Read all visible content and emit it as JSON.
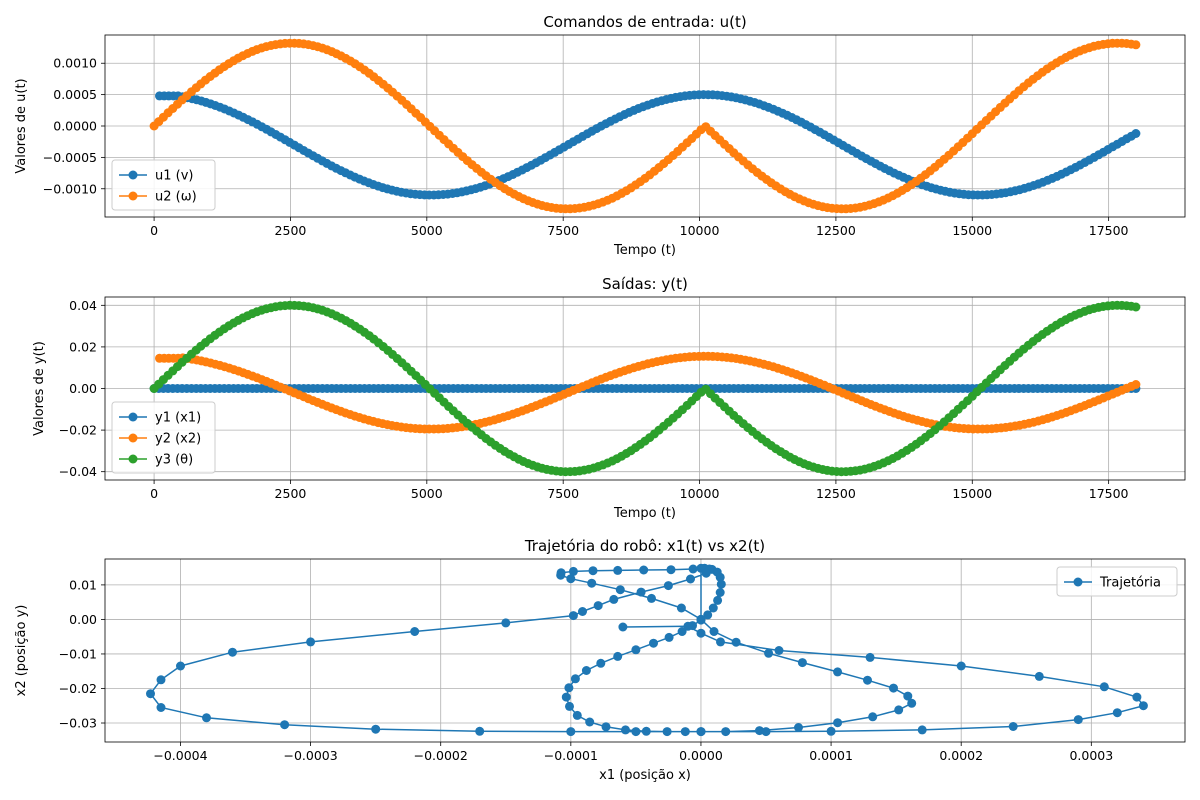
{
  "chart_data": [
    {
      "type": "line",
      "title": "Comandos de entrada: u(t)",
      "xlabel": "Tempo (t)",
      "ylabel": "Valores de u(t)",
      "xlim": [
        -900,
        18900
      ],
      "ylim": [
        -0.00145,
        0.00145
      ],
      "xticks": [
        0,
        2500,
        5000,
        7500,
        10000,
        12500,
        15000,
        17500
      ],
      "xtick_labels": [
        "0",
        "2500",
        "5000",
        "7500",
        "10000",
        "12500",
        "15000",
        "17500"
      ],
      "yticks": [
        -0.001,
        -0.0005,
        0,
        0.0005,
        0.001
      ],
      "ytick_labels": [
        "−0.0010",
        "−0.0005",
        "0.0000",
        "0.0005",
        "0.0010"
      ],
      "grid": true,
      "legend_position": "lower-left",
      "series": [
        {
          "name": "u1 (v)",
          "color": "#1f77b4",
          "model": "u1",
          "amp": 0.0011,
          "t0": 100,
          "t1": 18000
        },
        {
          "name": "u2 (ω)",
          "color": "#ff7f0e",
          "model": "u2",
          "amp": 0.00132,
          "t0": 0,
          "t1": 18000
        }
      ]
    },
    {
      "type": "line",
      "title": "Saídas: y(t)",
      "xlabel": "Tempo (t)",
      "ylabel": "Valores de y(t)",
      "xlim": [
        -900,
        18900
      ],
      "ylim": [
        -0.044,
        0.044
      ],
      "xticks": [
        0,
        2500,
        5000,
        7500,
        10000,
        12500,
        15000,
        17500
      ],
      "xtick_labels": [
        "0",
        "2500",
        "5000",
        "7500",
        "10000",
        "12500",
        "15000",
        "17500"
      ],
      "yticks": [
        -0.04,
        -0.02,
        0,
        0.02,
        0.04
      ],
      "ytick_labels": [
        "−0.04",
        "−0.02",
        "0.00",
        "0.02",
        "0.04"
      ],
      "grid": true,
      "legend_position": "lower-left",
      "series": [
        {
          "name": "y1 (x1)",
          "color": "#1f77b4",
          "model": "y1",
          "t0": 0,
          "t1": 18000
        },
        {
          "name": "y2 (x2)",
          "color": "#ff7f0e",
          "model": "y2",
          "amp": 0.0325,
          "t0": 100,
          "t1": 18000
        },
        {
          "name": "y3 (θ)",
          "color": "#2ca02c",
          "model": "y3",
          "amp": 0.04,
          "t0": 0,
          "t1": 18000
        }
      ]
    },
    {
      "type": "line",
      "title": "Trajetória do robô: x1(t) vs x2(t)",
      "xlabel": "x1 (posição x)",
      "ylabel": "x2 (posição y)",
      "xlim": [
        -0.000458,
        0.000372
      ],
      "ylim": [
        -0.0355,
        0.0175
      ],
      "xticks": [
        -0.0004,
        -0.0003,
        -0.0002,
        -0.0001,
        0,
        0.0001,
        0.0002,
        0.0003
      ],
      "xtick_labels": [
        "−0.0004",
        "−0.0003",
        "−0.0002",
        "−0.0001",
        "0.0000",
        "0.0001",
        "0.0002",
        "0.0003"
      ],
      "yticks": [
        -0.03,
        -0.02,
        -0.01,
        0,
        0.01
      ],
      "ytick_labels": [
        "−0.03",
        "−0.02",
        "−0.01",
        "0.00",
        "0.01"
      ],
      "grid": true,
      "legend_position": "upper-right",
      "series": [
        {
          "name": "Trajetória",
          "color": "#1f77b4",
          "points": [
            [
              0,
              0
            ],
            [
              0,
              0.0148
            ],
            [
              2.8e-06,
              0.0148
            ],
            [
              8.5e-06,
              0.0145
            ],
            [
              1.25e-05,
              0.0137
            ],
            [
              1.48e-05,
              0.0122
            ],
            [
              1.56e-05,
              0.0102
            ],
            [
              1.48e-05,
              0.0078
            ],
            [
              1.28e-05,
              0.0055
            ],
            [
              9.5e-06,
              0.0033
            ],
            [
              5.2e-06,
              0.0013
            ],
            [
              0,
              -0.0002
            ],
            [
              -6.5e-06,
              -0.0018
            ],
            [
              -1.45e-05,
              -0.0035
            ],
            [
              -2.45e-05,
              -0.0052
            ],
            [
              -3.65e-05,
              -0.0069
            ],
            [
              -5e-05,
              -0.0088
            ],
            [
              -6.4e-05,
              -0.0107
            ],
            [
              -7.7e-05,
              -0.0127
            ],
            [
              -8.8e-05,
              -0.0148
            ],
            [
              -9.65e-05,
              -0.0172
            ],
            [
              -0.0001015,
              -0.0198
            ],
            [
              -0.0001035,
              -0.0225
            ],
            [
              -0.000101,
              -0.0252
            ],
            [
              -9.5e-05,
              -0.0278
            ],
            [
              -8.55e-05,
              -0.0297
            ],
            [
              -7.3e-05,
              -0.0311
            ],
            [
              -5.8e-05,
              -0.032
            ],
            [
              -4.2e-05,
              -0.0324
            ],
            [
              -2.6e-05,
              -0.0325
            ],
            [
              -1.2e-05,
              -0.0325
            ],
            [
              0,
              -0.0325
            ],
            [
              1.9e-05,
              -0.0325
            ],
            [
              4.5e-05,
              -0.0322
            ],
            [
              7.5e-05,
              -0.0313
            ],
            [
              0.000105,
              -0.0299
            ],
            [
              0.000132,
              -0.0282
            ],
            [
              0.000152,
              -0.0262
            ],
            [
              0.000162,
              -0.0243
            ],
            [
              0.000159,
              -0.0222
            ],
            [
              0.000148,
              -0.0199
            ],
            [
              0.000128,
              -0.0176
            ],
            [
              0.000105,
              -0.0152
            ],
            [
              7.8e-05,
              -0.0125
            ],
            [
              5.2e-05,
              -0.0098
            ],
            [
              2.7e-05,
              -0.0066
            ],
            [
              1e-05,
              -0.0035
            ],
            [
              0,
              0
            ],
            [
              -1.5e-05,
              0.0033
            ],
            [
              -3.8e-05,
              0.0061
            ],
            [
              -6.2e-05,
              0.0086
            ],
            [
              -8.4e-05,
              0.0105
            ],
            [
              -0.0001,
              0.0118
            ],
            [
              -0.0001078,
              0.0128
            ],
            [
              -0.0001075,
              0.0135
            ],
            [
              -9.8e-05,
              0.0139
            ],
            [
              -8.3e-05,
              0.0141
            ],
            [
              -6.4e-05,
              0.0142
            ],
            [
              -4.4e-05,
              0.0143
            ],
            [
              -2.3e-05,
              0.0144
            ],
            [
              -6e-06,
              0.0146
            ],
            [
              6.5e-06,
              0.0146
            ],
            [
              4e-06,
              0.0134
            ],
            [
              -8e-06,
              0.0117
            ],
            [
              -2.5e-05,
              0.0098
            ],
            [
              -4.6e-05,
              0.0079
            ],
            [
              -6.7e-05,
              0.0058
            ],
            [
              -7.9e-05,
              0.004
            ],
            [
              -9.1e-05,
              0.0023
            ],
            [
              -9.8e-05,
              0.0011
            ],
            [
              -0.00015,
              -0.001
            ],
            [
              -0.00022,
              -0.0035
            ],
            [
              -0.0003,
              -0.0065
            ],
            [
              -0.00036,
              -0.0095
            ],
            [
              -0.0004,
              -0.0135
            ],
            [
              -0.000415,
              -0.0175
            ],
            [
              -0.000423,
              -0.0215
            ],
            [
              -0.000415,
              -0.0255
            ],
            [
              -0.00038,
              -0.0285
            ],
            [
              -0.00032,
              -0.0305
            ],
            [
              -0.00025,
              -0.0318
            ],
            [
              -0.00017,
              -0.0324
            ],
            [
              -0.0001,
              -0.0325
            ],
            [
              -5e-05,
              -0.0325
            ],
            [
              0,
              -0.0325
            ],
            [
              5e-05,
              -0.0325
            ],
            [
              0.0001,
              -0.0324
            ],
            [
              0.00017,
              -0.032
            ],
            [
              0.00024,
              -0.031
            ],
            [
              0.00029,
              -0.029
            ],
            [
              0.00032,
              -0.027
            ],
            [
              0.00034,
              -0.025
            ],
            [
              0.000335,
              -0.0225
            ],
            [
              0.00031,
              -0.0195
            ],
            [
              0.00026,
              -0.0165
            ],
            [
              0.0002,
              -0.0135
            ],
            [
              0.00013,
              -0.011
            ],
            [
              6e-05,
              -0.009
            ],
            [
              1.5e-05,
              -0.0065
            ],
            [
              0,
              -0.004
            ],
            [
              -1e-05,
              -0.002
            ],
            [
              -6e-05,
              -0.0022
            ]
          ]
        }
      ]
    }
  ]
}
